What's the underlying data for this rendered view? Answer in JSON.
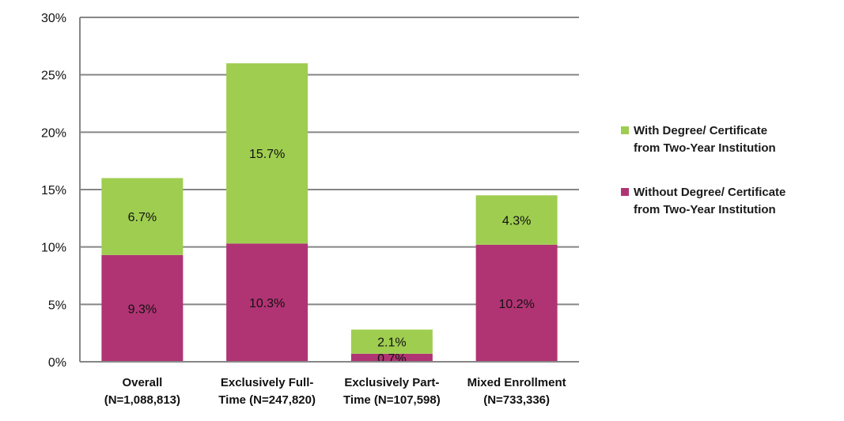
{
  "chart_data": {
    "type": "bar",
    "stacked": true,
    "categories": [
      [
        "Overall",
        "(N=1,088,813)"
      ],
      [
        "Exclusively Full-",
        "Time (N=247,820)"
      ],
      [
        "Exclusively Part-",
        "Time (N=107,598)"
      ],
      [
        "Mixed Enrollment",
        "(N=733,336)"
      ]
    ],
    "series": [
      {
        "name": "Without Degree/ Certificate from Two-Year Institution",
        "values": [
          9.3,
          10.3,
          0.7,
          10.2
        ],
        "labels": [
          "9.3%",
          "10.3%",
          "0.7%",
          "10.2%"
        ],
        "color": "#B03473"
      },
      {
        "name": "With Degree/ Certificate from Two-Year Institution",
        "values": [
          6.7,
          15.7,
          2.1,
          4.3
        ],
        "labels": [
          "6.7%",
          "15.7%",
          "2.1%",
          "4.3%"
        ],
        "color": "#9FCD50"
      }
    ],
    "ylim": [
      0,
      30
    ],
    "yticks": [
      "0%",
      "5%",
      "10%",
      "15%",
      "20%",
      "25%",
      "30%"
    ],
    "grid": true,
    "legend": "right",
    "title": "",
    "xlabel": "",
    "ylabel": ""
  },
  "legend": [
    {
      "line1": "With Degree/ Certificate",
      "line2": "from Two-Year Institution",
      "color": "#9FCD50"
    },
    {
      "line1": "Without Degree/ Certificate",
      "line2": "from Two-Year Institution",
      "color": "#B03473"
    }
  ]
}
